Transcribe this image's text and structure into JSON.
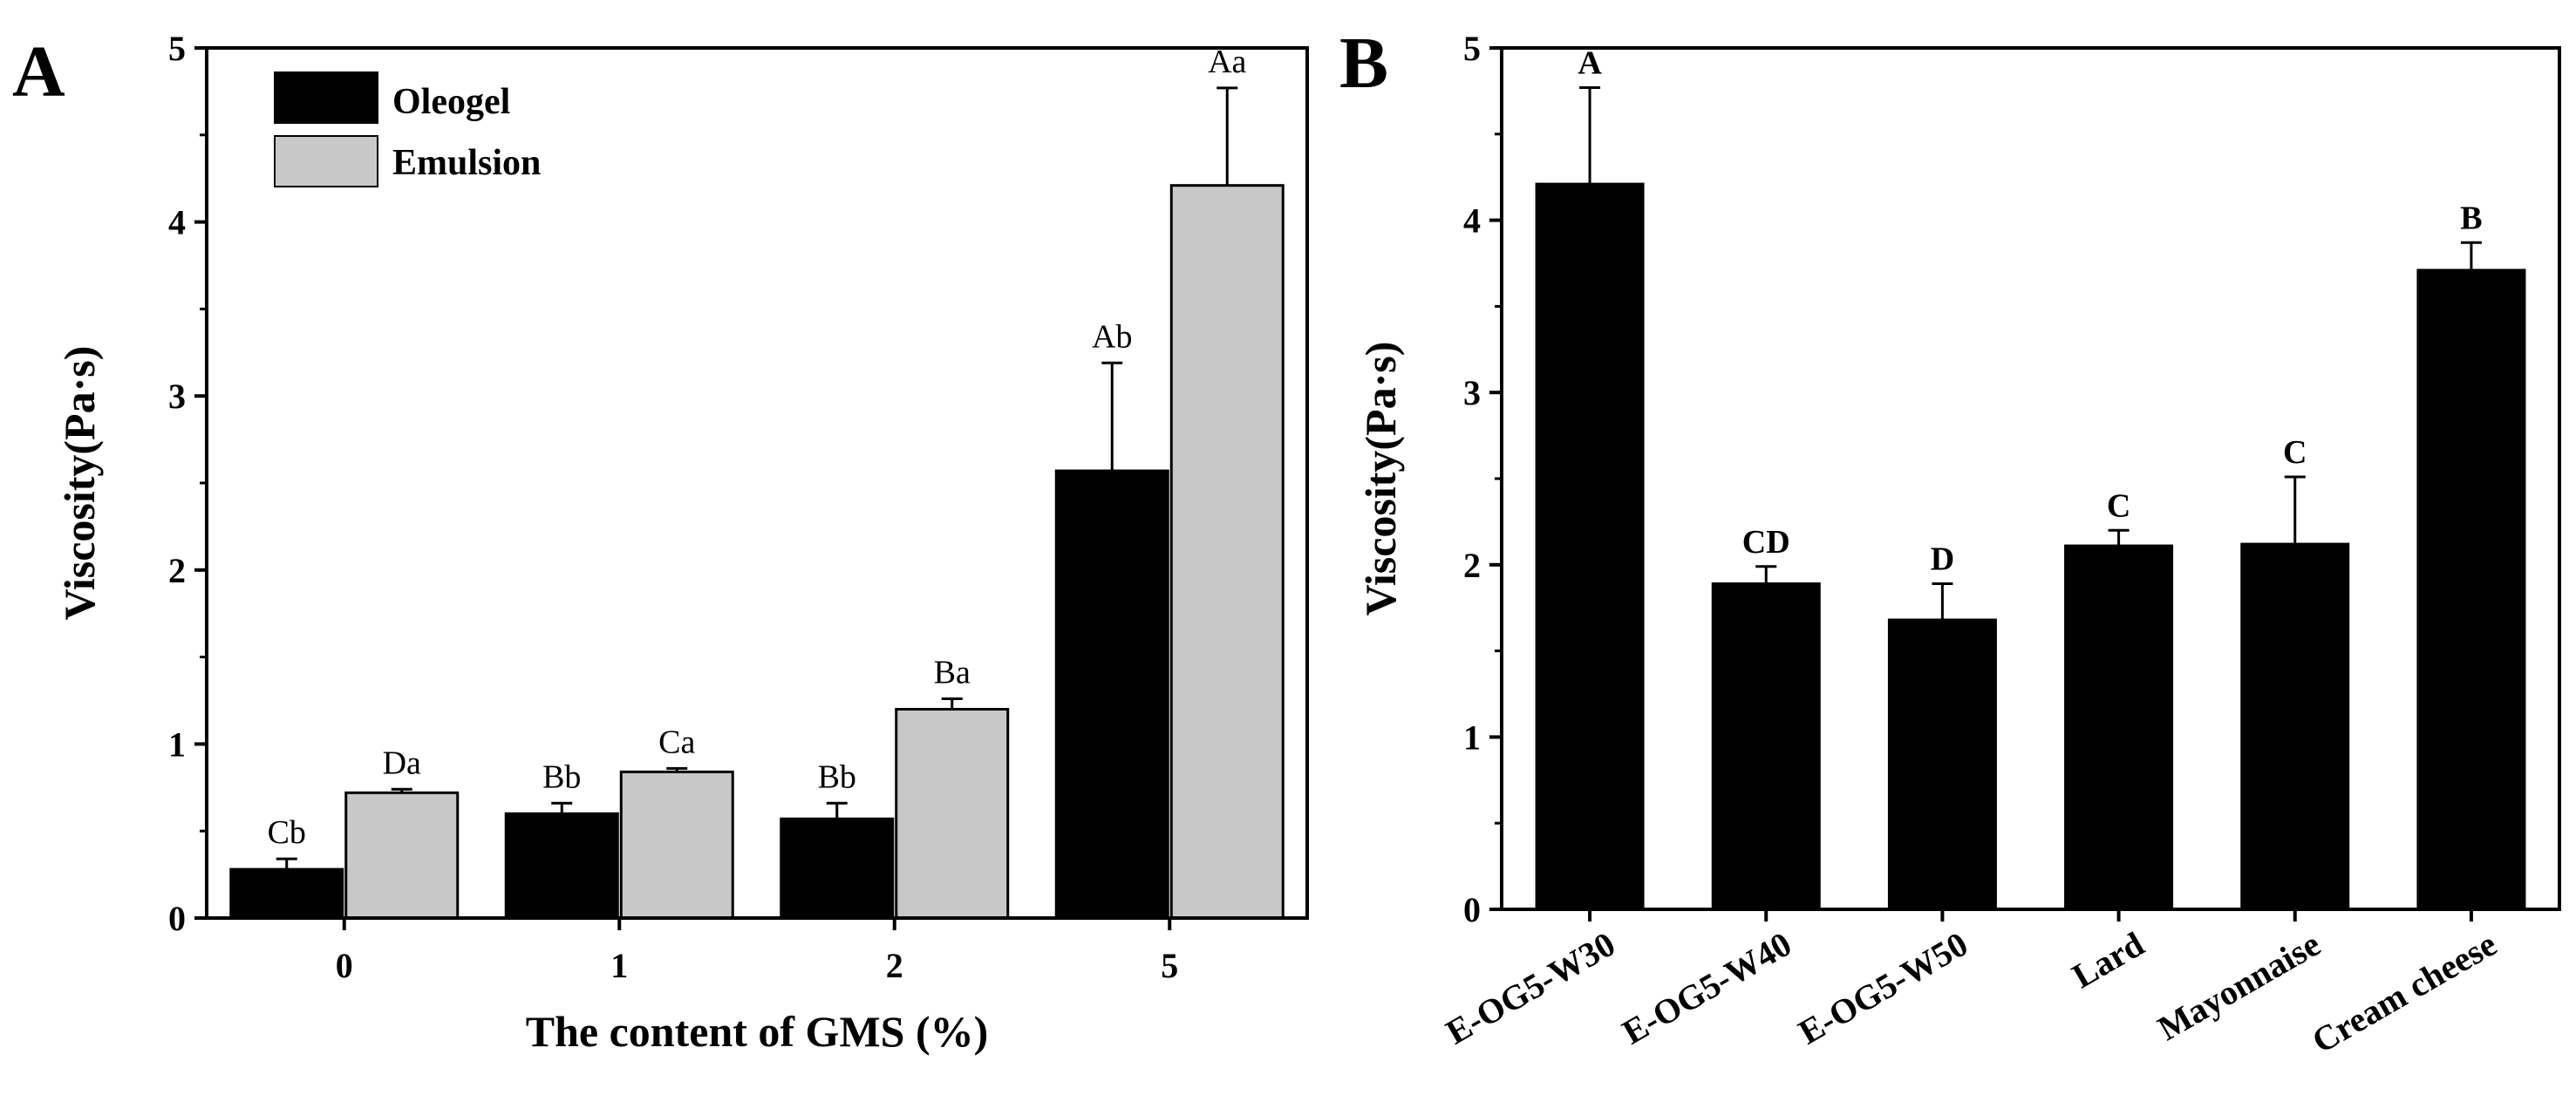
{
  "chart_data": [
    {
      "type": "bar",
      "panel_label": "A",
      "title": "",
      "xlabel": "The content of GMS (%)",
      "ylabel": "Viscosity(Pa·s)",
      "ylim": [
        0,
        5
      ],
      "yticks": [
        "0",
        "1",
        "2",
        "3",
        "4",
        "5"
      ],
      "categories": [
        "0",
        "1",
        "2",
        "5"
      ],
      "legend_position": "top-left",
      "series": [
        {
          "name": "Oleogel",
          "color": "#000000",
          "values": [
            0.28,
            0.6,
            0.57,
            2.57
          ],
          "errors": [
            0.06,
            0.06,
            0.09,
            0.62
          ],
          "labels": [
            "Cb",
            "Bb",
            "Bb",
            "Ab"
          ]
        },
        {
          "name": "Emulsion",
          "color": "#c8c8c8",
          "values": [
            0.72,
            0.84,
            1.2,
            4.21
          ],
          "errors": [
            0.02,
            0.02,
            0.06,
            0.56
          ],
          "labels": [
            "Da",
            "Ca",
            "Ba",
            "Aa"
          ]
        }
      ]
    },
    {
      "type": "bar",
      "panel_label": "B",
      "title": "",
      "xlabel": "",
      "ylabel": "Viscosity(Pa·s)",
      "ylim": [
        0,
        5
      ],
      "yticks": [
        "0",
        "1",
        "2",
        "3",
        "4",
        "5"
      ],
      "categories": [
        "E-OG5-W30",
        "E-OG5-W40",
        "E-OG5-W50",
        "Lard",
        "Mayonnaise",
        "Cream cheese"
      ],
      "series": [
        {
          "name": "Viscosity",
          "color": "#000000",
          "values": [
            4.21,
            1.89,
            1.68,
            2.11,
            2.12,
            3.71
          ],
          "errors": [
            0.56,
            0.1,
            0.21,
            0.09,
            0.39,
            0.16
          ],
          "labels": [
            "A",
            "CD",
            "D",
            "C",
            "C",
            "B"
          ]
        }
      ]
    }
  ]
}
